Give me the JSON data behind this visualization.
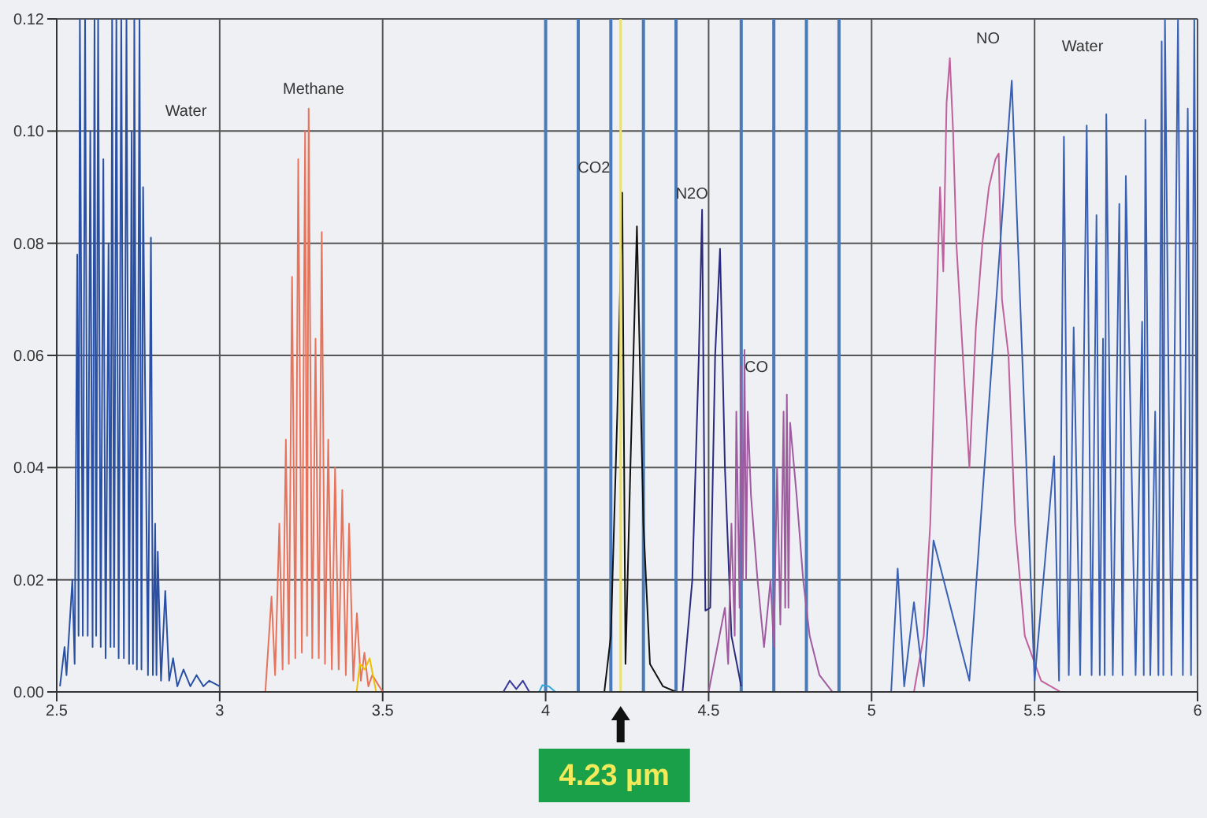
{
  "chart_data": {
    "type": "line",
    "xlim": [
      2.5,
      6
    ],
    "ylim": [
      0,
      0.12
    ],
    "xticks": [
      2.5,
      3,
      3.5,
      4,
      4.5,
      5,
      5.5,
      6
    ],
    "yticks": [
      {
        "value": 0,
        "label": "0.00"
      },
      {
        "value": 0.02,
        "label": "0.02"
      },
      {
        "value": 0.04,
        "label": "0.04"
      },
      {
        "value": 0.06,
        "label": "0.06"
      },
      {
        "value": 0.08,
        "label": "0.08"
      },
      {
        "value": 0.1,
        "label": "0.10"
      },
      {
        "value": 0.12,
        "label": "0.12"
      }
    ],
    "grid": true,
    "marker": "none",
    "line_style": "solid",
    "series": [
      {
        "color": "#2a50a4",
        "x": [
          2.51,
          2.524,
          2.53,
          2.548,
          2.555,
          2.563,
          2.567,
          2.571,
          2.58,
          2.587,
          2.595,
          2.603,
          2.61,
          2.616,
          2.621,
          2.627,
          2.635,
          2.643,
          2.65,
          2.659,
          2.665,
          2.67,
          2.676,
          2.683,
          2.69,
          2.698,
          2.706,
          2.714,
          2.722,
          2.73,
          2.734,
          2.738,
          2.746,
          2.754,
          2.76,
          2.765,
          2.78,
          2.789,
          2.795,
          2.802,
          2.806,
          2.81,
          2.82,
          2.833,
          2.845,
          2.857,
          2.87,
          2.889,
          2.91,
          2.929,
          2.95,
          2.968,
          3.0
        ],
        "values": [
          0.001,
          0.008,
          0.003,
          0.02,
          0.005,
          0.078,
          0.01,
          0.12,
          0.01,
          0.12,
          0.01,
          0.1,
          0.008,
          0.12,
          0.01,
          0.12,
          0.008,
          0.095,
          0.006,
          0.08,
          0.008,
          0.12,
          0.008,
          0.12,
          0.006,
          0.12,
          0.006,
          0.12,
          0.005,
          0.1,
          0.005,
          0.12,
          0.004,
          0.12,
          0.004,
          0.09,
          0.003,
          0.081,
          0.003,
          0.03,
          0.003,
          0.025,
          0.002,
          0.018,
          0.002,
          0.006,
          0.001,
          0.004,
          0.001,
          0.003,
          0.001,
          0.002,
          0.001
        ]
      },
      {
        "color": "#e8735a",
        "x": [
          3.14,
          3.159,
          3.17,
          3.183,
          3.193,
          3.203,
          3.212,
          3.222,
          3.232,
          3.241,
          3.252,
          3.262,
          3.268,
          3.273,
          3.284,
          3.294,
          3.304,
          3.313,
          3.323,
          3.333,
          3.344,
          3.354,
          3.365,
          3.376,
          3.387,
          3.397,
          3.41,
          3.421,
          3.433,
          3.444,
          3.456,
          3.468,
          3.5
        ],
        "values": [
          0,
          0.017,
          0.003,
          0.03,
          0.004,
          0.045,
          0.005,
          0.074,
          0.006,
          0.095,
          0.007,
          0.1,
          0.01,
          0.104,
          0.006,
          0.063,
          0.006,
          0.082,
          0.005,
          0.045,
          0.004,
          0.04,
          0.004,
          0.036,
          0.003,
          0.03,
          0.002,
          0.014,
          0.002,
          0.007,
          0.001,
          0.003,
          0
        ]
      },
      {
        "color": "#f0c000",
        "x": [
          3.42,
          3.43,
          3.445,
          3.46,
          3.48
        ],
        "values": [
          0,
          0.005,
          0.004,
          0.006,
          0
        ]
      },
      {
        "color": "#3a3a9a",
        "x": [
          3.87,
          3.89,
          3.91,
          3.93,
          3.95
        ],
        "values": [
          0,
          0.002,
          0.0005,
          0.002,
          0
        ]
      },
      {
        "color": "#30a8d8",
        "x": [
          3.98,
          3.99,
          4.01,
          4.03
        ],
        "values": [
          0,
          0.0012,
          0.001,
          0
        ]
      },
      {
        "color": "#111111",
        "x": [
          4.18,
          4.2,
          4.22,
          4.235,
          4.245,
          4.26,
          4.28,
          4.3,
          4.32,
          4.36,
          4.4
        ],
        "values": [
          0,
          0.01,
          0.05,
          0.089,
          0.005,
          0.04,
          0.083,
          0.03,
          0.005,
          0.001,
          0
        ]
      },
      {
        "color": "#2a2a80",
        "x": [
          4.42,
          4.45,
          4.47,
          4.48,
          4.49,
          4.505,
          4.52,
          4.535,
          4.55,
          4.57,
          4.6
        ],
        "values": [
          0,
          0.02,
          0.06,
          0.086,
          0.0145,
          0.015,
          0.06,
          0.079,
          0.04,
          0.01,
          0.001
        ]
      },
      {
        "color": "#a05aa0",
        "x": [
          4.5,
          4.55,
          4.56,
          4.57,
          4.58,
          4.585,
          4.595,
          4.6,
          4.605,
          4.61,
          4.615,
          4.62,
          4.63,
          4.65,
          4.67,
          4.69,
          4.7,
          4.71,
          4.72,
          4.73,
          4.735,
          4.74,
          4.745,
          4.75,
          4.77,
          4.79,
          4.81,
          4.84,
          4.88
        ],
        "values": [
          0,
          0.015,
          0.005,
          0.03,
          0.01,
          0.05,
          0.015,
          0.058,
          0.02,
          0.061,
          0.02,
          0.05,
          0.035,
          0.02,
          0.008,
          0.02,
          0.008,
          0.04,
          0.012,
          0.05,
          0.015,
          0.053,
          0.015,
          0.048,
          0.035,
          0.02,
          0.01,
          0.003,
          0
        ]
      },
      {
        "color": "#c0609c",
        "x": [
          5.13,
          5.16,
          5.18,
          5.2,
          5.21,
          5.22,
          5.23,
          5.24,
          5.25,
          5.26,
          5.28,
          5.3,
          5.32,
          5.34,
          5.36,
          5.38,
          5.39,
          5.4,
          5.42,
          5.44,
          5.47,
          5.52,
          5.58
        ],
        "values": [
          0,
          0.01,
          0.03,
          0.07,
          0.09,
          0.075,
          0.105,
          0.113,
          0.1,
          0.08,
          0.06,
          0.04,
          0.065,
          0.08,
          0.09,
          0.095,
          0.096,
          0.07,
          0.06,
          0.03,
          0.01,
          0.002,
          0
        ]
      },
      {
        "color": "#3a60b4",
        "x": [
          5.06,
          5.08,
          5.1,
          5.13,
          5.16,
          5.19,
          5.3,
          5.43,
          5.5,
          5.56,
          5.575,
          5.59,
          5.605,
          5.62,
          5.64,
          5.66,
          5.675,
          5.69,
          5.7,
          5.71,
          5.715,
          5.72,
          5.74,
          5.76,
          5.77,
          5.78,
          5.81,
          5.83,
          5.835,
          5.84,
          5.855,
          5.87,
          5.88,
          5.89,
          5.895,
          5.9,
          5.92,
          5.94,
          5.955,
          5.97,
          5.98,
          5.99,
          6.0
        ],
        "values": [
          0,
          0.022,
          0.001,
          0.016,
          0.001,
          0.027,
          0.002,
          0.109,
          0.002,
          0.042,
          0.002,
          0.099,
          0.003,
          0.065,
          0.003,
          0.101,
          0.003,
          0.085,
          0.003,
          0.063,
          0.003,
          0.103,
          0.003,
          0.087,
          0.003,
          0.092,
          0.003,
          0.066,
          0.003,
          0.102,
          0.003,
          0.05,
          0.003,
          0.116,
          0.003,
          0.12,
          0.003,
          0.12,
          0.003,
          0.104,
          0.003,
          0.12,
          0.003
        ]
      }
    ],
    "ref_lines": [
      {
        "axis": "x",
        "value": 4.0,
        "color": "#4a7ab8"
      },
      {
        "axis": "x",
        "value": 4.1,
        "color": "#4a7ab8"
      },
      {
        "axis": "x",
        "value": 4.2,
        "color": "#4a7ab8"
      },
      {
        "axis": "x",
        "value": 4.3,
        "color": "#4a7ab8"
      },
      {
        "axis": "x",
        "value": 4.4,
        "color": "#4a7ab8"
      },
      {
        "axis": "x",
        "value": 4.6,
        "color": "#4a7ab8"
      },
      {
        "axis": "x",
        "value": 4.7,
        "color": "#4a7ab8"
      },
      {
        "axis": "x",
        "value": 4.8,
        "color": "#4a7ab8"
      },
      {
        "axis": "x",
        "value": 4.9,
        "color": "#4a7ab8"
      },
      {
        "axis": "x",
        "value": 4.23,
        "label": "4.23 µm",
        "color": "#e8e070"
      }
    ],
    "annotations": [
      "Water",
      "Methane",
      {
        "text": "CO2",
        "x": 4.24,
        "y": 0.0936
      },
      {
        "text": "N2O",
        "x": 4.41,
        "y": 0.089
      },
      {
        "text": "CO",
        "x": 4.69,
        "y": 0.058
      },
      "NO",
      "Water"
    ]
  }
}
